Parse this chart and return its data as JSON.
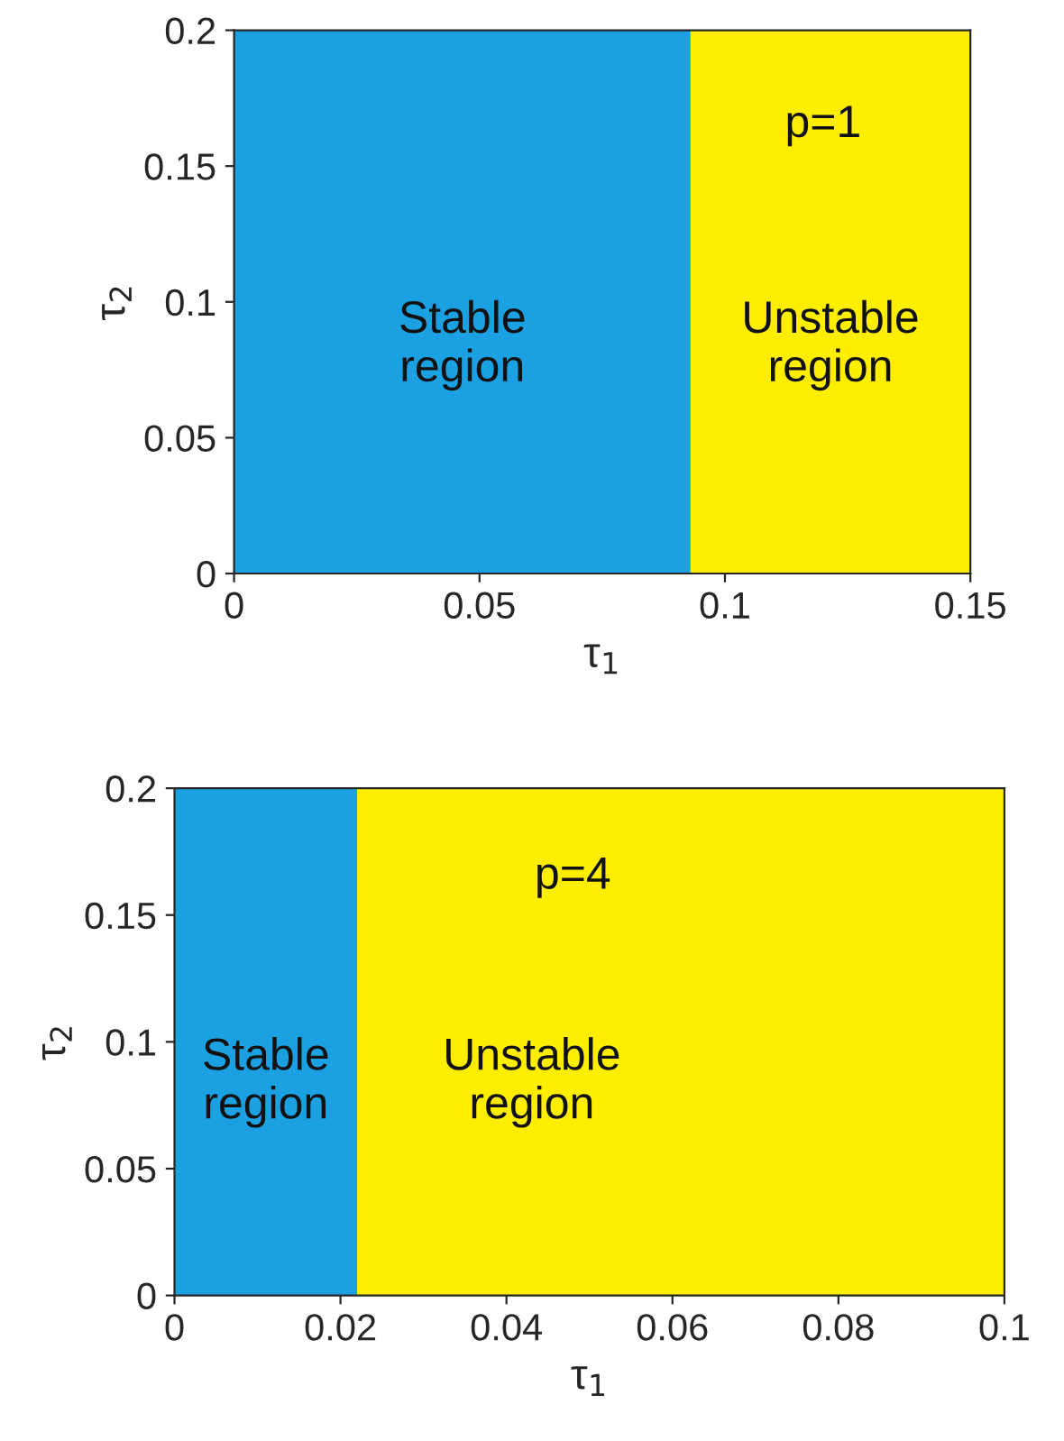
{
  "chart_data": [
    {
      "type": "area",
      "xlabel": "τ$_{1}$",
      "ylabel": "τ$_{2}$",
      "xlim": [
        0,
        0.15
      ],
      "ylim": [
        0,
        0.2
      ],
      "xticks": [
        0,
        0.05,
        0.1,
        0.15
      ],
      "yticks": [
        0,
        0.05,
        0.1,
        0.15,
        0.2
      ],
      "series": [
        {
          "name": "Stable\nregion",
          "color": "#1ba1e2",
          "x": [
            0,
            0.093
          ],
          "values": [
            0.2,
            0.2
          ]
        },
        {
          "name": "Unstable\nregion",
          "color": "#ffee00",
          "x": [
            0.093,
            0.15
          ],
          "values": [
            0.2,
            0.2
          ]
        }
      ],
      "annotations": [
        "p=1"
      ]
    },
    {
      "type": "area",
      "xlabel": "τ$_{1}$",
      "ylabel": "τ$_{2}$",
      "xlim": [
        0,
        0.1
      ],
      "ylim": [
        0,
        0.2
      ],
      "xticks": [
        0,
        0.02,
        0.04,
        0.06,
        0.08,
        0.1
      ],
      "yticks": [
        0,
        0.05,
        0.1,
        0.15,
        0.2
      ],
      "series": [
        {
          "name": "Stable\nregion",
          "color": "#1ba1e2",
          "x": [
            0,
            0.022
          ],
          "values": [
            0.2,
            0.2
          ]
        },
        {
          "name": "Unstable\nregion",
          "color": "#ffee00",
          "x": [
            0.022,
            0.1
          ],
          "values": [
            0.2,
            0.2
          ]
        }
      ],
      "annotations": [
        "p=4"
      ]
    }
  ]
}
